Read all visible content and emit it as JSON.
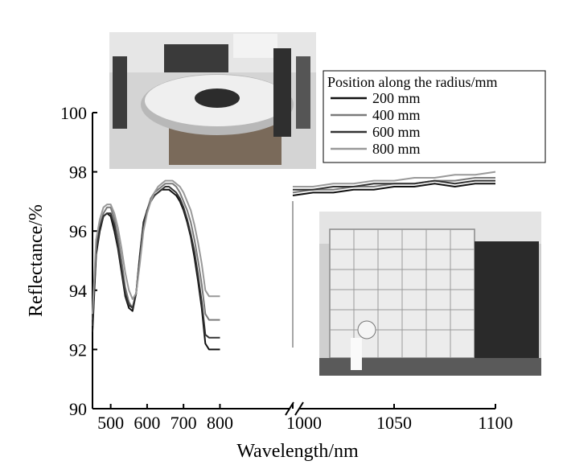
{
  "chart_data": {
    "type": "line",
    "xlabel": "Wavelength/nm",
    "ylabel": "Reflectance/%",
    "ylim": [
      90,
      100
    ],
    "y_ticks": [
      90,
      92,
      94,
      96,
      98,
      100
    ],
    "x_axis_broken": true,
    "x_segments": [
      {
        "range": [
          450,
          1000
        ],
        "ticks": [
          500,
          600,
          700,
          800
        ]
      },
      {
        "range": [
          1000,
          1100
        ],
        "ticks": [
          1000,
          1050,
          1100
        ]
      }
    ],
    "legend": {
      "title": "Position along the radius/mm",
      "placement": "top-right"
    },
    "series": [
      {
        "name": "200 mm",
        "color": "#111111",
        "x": [
          450,
          460,
          470,
          480,
          490,
          500,
          510,
          520,
          530,
          540,
          550,
          560,
          570,
          580,
          590,
          600,
          610,
          620,
          630,
          640,
          650,
          660,
          670,
          680,
          690,
          700,
          710,
          720,
          730,
          740,
          750,
          760,
          770,
          780,
          790,
          800,
          1000,
          1010,
          1020,
          1030,
          1040,
          1050,
          1060,
          1070,
          1080,
          1090,
          1100
        ],
        "y": [
          92.6,
          95.2,
          96.0,
          96.5,
          96.6,
          96.5,
          96.0,
          95.4,
          94.6,
          93.8,
          93.4,
          93.3,
          93.9,
          95.2,
          96.3,
          96.7,
          97.0,
          97.2,
          97.3,
          97.4,
          97.4,
          97.4,
          97.3,
          97.2,
          97.0,
          96.7,
          96.3,
          95.8,
          95.1,
          94.3,
          93.4,
          92.2,
          92.0,
          92.0,
          92.0,
          92.0,
          97.2,
          97.3,
          97.3,
          97.4,
          97.4,
          97.5,
          97.5,
          97.6,
          97.5,
          97.6,
          97.6
        ]
      },
      {
        "name": "400 mm",
        "color": "#7a7a7a",
        "x": [
          450,
          460,
          470,
          480,
          490,
          500,
          510,
          520,
          530,
          540,
          550,
          560,
          570,
          580,
          590,
          600,
          610,
          620,
          630,
          640,
          650,
          660,
          670,
          680,
          690,
          700,
          710,
          720,
          730,
          740,
          750,
          760,
          770,
          780,
          790,
          800,
          1000,
          1010,
          1020,
          1030,
          1040,
          1050,
          1060,
          1070,
          1080,
          1090,
          1100
        ],
        "y": [
          93.0,
          95.5,
          96.2,
          96.6,
          96.8,
          96.8,
          96.4,
          95.8,
          95.0,
          94.1,
          93.6,
          93.4,
          93.9,
          95.1,
          96.2,
          96.7,
          97.1,
          97.3,
          97.4,
          97.5,
          97.6,
          97.6,
          97.6,
          97.5,
          97.3,
          97.0,
          96.7,
          96.3,
          95.7,
          95.0,
          94.2,
          93.2,
          93.0,
          93.0,
          93.0,
          93.0,
          97.3,
          97.4,
          97.4,
          97.5,
          97.5,
          97.6,
          97.6,
          97.7,
          97.7,
          97.8,
          97.8
        ]
      },
      {
        "name": "600 mm",
        "color": "#333333",
        "x": [
          450,
          460,
          470,
          480,
          490,
          500,
          510,
          520,
          530,
          540,
          550,
          560,
          570,
          580,
          590,
          600,
          610,
          620,
          630,
          640,
          650,
          660,
          670,
          680,
          690,
          700,
          710,
          720,
          730,
          740,
          750,
          760,
          770,
          780,
          790,
          800,
          1000,
          1010,
          1020,
          1030,
          1040,
          1050,
          1060,
          1070,
          1080,
          1090,
          1100
        ],
        "y": [
          92.8,
          95.3,
          96.1,
          96.5,
          96.6,
          96.6,
          96.2,
          95.5,
          94.7,
          93.9,
          93.5,
          93.4,
          93.9,
          95.1,
          96.2,
          96.7,
          97.0,
          97.2,
          97.3,
          97.4,
          97.5,
          97.5,
          97.4,
          97.3,
          97.1,
          96.8,
          96.4,
          95.9,
          95.3,
          94.5,
          93.6,
          92.5,
          92.4,
          92.4,
          92.4,
          92.4,
          97.4,
          97.4,
          97.5,
          97.5,
          97.6,
          97.6,
          97.6,
          97.7,
          97.6,
          97.7,
          97.7
        ]
      },
      {
        "name": "800 mm",
        "color": "#999999",
        "x": [
          450,
          460,
          470,
          480,
          490,
          500,
          510,
          520,
          530,
          540,
          550,
          560,
          570,
          580,
          590,
          600,
          610,
          620,
          630,
          640,
          650,
          660,
          670,
          680,
          690,
          700,
          710,
          720,
          730,
          740,
          750,
          760,
          770,
          780,
          790,
          800,
          1000,
          1010,
          1020,
          1030,
          1040,
          1050,
          1060,
          1070,
          1080,
          1090,
          1100
        ],
        "y": [
          93.2,
          95.7,
          96.4,
          96.8,
          96.9,
          96.9,
          96.6,
          96.1,
          95.4,
          94.6,
          94.0,
          93.7,
          93.9,
          94.9,
          96.0,
          96.6,
          97.0,
          97.3,
          97.5,
          97.6,
          97.7,
          97.7,
          97.7,
          97.6,
          97.5,
          97.3,
          97.0,
          96.7,
          96.2,
          95.6,
          94.9,
          94.0,
          93.8,
          93.8,
          93.8,
          93.8,
          97.5,
          97.5,
          97.6,
          97.6,
          97.7,
          97.7,
          97.8,
          97.8,
          97.9,
          97.9,
          98.0
        ]
      }
    ]
  }
}
